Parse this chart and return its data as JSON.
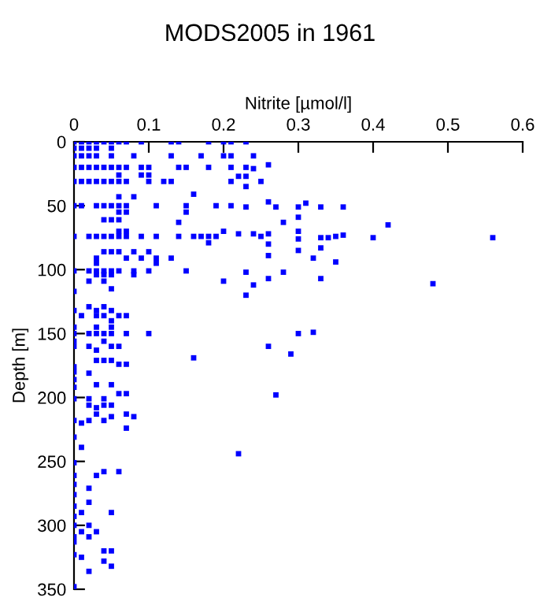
{
  "chart_data": {
    "type": "scatter",
    "title": "MODS2005 in 1961",
    "xlabel": "Nitrite [µmol/l]",
    "ylabel": "Depth [m]",
    "xlim": [
      0,
      0.6
    ],
    "xticks": [
      0,
      0.1,
      0.2,
      0.3,
      0.4,
      0.5,
      0.6
    ],
    "ylim": [
      350,
      0
    ],
    "yticks": [
      0,
      50,
      100,
      150,
      200,
      250,
      300,
      350
    ],
    "grid": false,
    "legend": false,
    "marker": "square",
    "series": [
      {
        "color": "#0000ff",
        "x": [
          0,
          0.01,
          0.02,
          0.03,
          0.04,
          0.05,
          0.06,
          0.07,
          0.09,
          0.13,
          0.14,
          0.18,
          0.2,
          0.21,
          0.23,
          0,
          0.01,
          0.02,
          0.03,
          0.05,
          0,
          0.01,
          0.02,
          0.03,
          0.05,
          0.08,
          0.13,
          0.17,
          0.2,
          0.21,
          0.24,
          0.26,
          0,
          0.01,
          0.02,
          0.03,
          0.04,
          0.05,
          0.06,
          0.07,
          0.09,
          0.1,
          0.14,
          0.15,
          0.18,
          0.21,
          0.23,
          0.24,
          0.06,
          0.09,
          0.1,
          0.22,
          0.23,
          0,
          0.01,
          0.02,
          0.03,
          0.04,
          0.05,
          0.06,
          0.07,
          0.1,
          0.12,
          0.13,
          0.21,
          0.25,
          0.23,
          0.16,
          0.06,
          0.08,
          0.26,
          0.31,
          0,
          0.01,
          0.03,
          0.04,
          0.05,
          0.06,
          0.07,
          0.11,
          0.15,
          0.19,
          0.21,
          0.23,
          0.27,
          0.3,
          0.33,
          0.36,
          0.06,
          0.07,
          0.15,
          0.3,
          0.04,
          0.05,
          0.06,
          0.14,
          0.28,
          0.42,
          0.06,
          0.07,
          0.2,
          0.3,
          0.22,
          0.24,
          0.26,
          0.36,
          0,
          0.02,
          0.03,
          0.04,
          0.05,
          0.06,
          0.07,
          0.09,
          0.11,
          0.14,
          0.16,
          0.17,
          0.18,
          0.19,
          0.25,
          0.35,
          0.33,
          0.34,
          0.4,
          0.56,
          0.3,
          0.18,
          0.26,
          0.33,
          0.3,
          0.04,
          0.05,
          0.06,
          0.08,
          0.1,
          0.26,
          0.03,
          0.07,
          0.09,
          0.11,
          0.13,
          0.32,
          0.35,
          0.03,
          0.11,
          0,
          0.02,
          0.03,
          0.04,
          0.05,
          0.06,
          0.08,
          0.1,
          0.15,
          0.23,
          0.28,
          0.03,
          0.04,
          0.05,
          0.08,
          0.26,
          0.33,
          0.02,
          0.04,
          0.2,
          0.48,
          0.24,
          0.05,
          0,
          0.23,
          0.02,
          0.04,
          0,
          0.03,
          0.05,
          0.01,
          0.03,
          0.04,
          0.06,
          0.07,
          0.05,
          0,
          0.03,
          0.05,
          0.32,
          0,
          0.02,
          0.03,
          0.04,
          0.05,
          0.07,
          0.1,
          0.3,
          0,
          0.04,
          0,
          0.02,
          0.05,
          0.06,
          0.26,
          0.03,
          0.29,
          0.16,
          0.03,
          0.04,
          0.05,
          0.06,
          0.07,
          0,
          0,
          0.02,
          0,
          0.03,
          0.05,
          0,
          0.06,
          0.07,
          0.27,
          0,
          0.02,
          0.04,
          0.02,
          0.04,
          0.05,
          0.03,
          0.03,
          0.07,
          0.05,
          0.08,
          0,
          0.02,
          0.04,
          0.01,
          0.07,
          0,
          0.01,
          0.22,
          0,
          0.04,
          0.06,
          0,
          0.03,
          0,
          0.02,
          0,
          0.02,
          0,
          0.01,
          0.05,
          0,
          0,
          0.02,
          0.01,
          0.03,
          0,
          0.02,
          0,
          0.04,
          0.05,
          0,
          0.01,
          0.04,
          0.05,
          0.02,
          0
        ],
        "values": [
          0,
          0,
          0,
          0,
          0,
          0,
          0,
          0,
          0,
          0,
          0,
          0,
          0,
          0,
          0,
          5,
          5,
          5,
          5,
          5,
          11,
          11,
          11,
          11,
          11,
          11,
          11,
          11,
          11,
          11,
          11,
          18,
          20,
          20,
          20,
          20,
          20,
          20,
          20,
          20,
          20,
          20,
          20,
          20,
          20,
          20,
          20,
          21,
          26,
          26,
          26,
          27,
          27,
          31,
          31,
          31,
          31,
          31,
          31,
          31,
          31,
          31,
          31,
          31,
          31,
          31,
          35,
          41,
          43,
          43,
          47,
          48,
          50,
          50,
          50,
          50,
          50,
          50,
          50,
          50,
          50,
          50,
          50,
          51,
          51,
          51,
          51,
          51,
          55,
          55,
          55,
          59,
          61,
          61,
          61,
          63,
          63,
          65,
          70,
          70,
          70,
          70,
          72,
          72,
          72,
          73,
          74,
          74,
          74,
          74,
          74,
          74,
          74,
          74,
          74,
          74,
          74,
          74,
          74,
          74,
          74,
          74,
          75,
          75,
          75,
          75,
          76,
          79,
          80,
          83,
          85,
          86,
          86,
          86,
          86,
          86,
          89,
          91,
          91,
          91,
          91,
          91,
          91,
          94,
          95,
          95,
          101,
          101,
          101,
          101,
          101,
          101,
          101,
          101,
          101,
          102,
          102,
          104,
          104,
          104,
          104,
          107,
          107,
          109,
          109,
          109,
          111,
          112,
          115,
          117,
          120,
          129,
          129,
          132,
          132,
          132,
          136,
          136,
          136,
          136,
          136,
          140,
          145,
          145,
          145,
          149,
          150,
          150,
          150,
          150,
          150,
          150,
          150,
          150,
          156,
          156,
          160,
          160,
          160,
          160,
          160,
          163,
          166,
          169,
          171,
          171,
          171,
          174,
          174,
          176,
          180,
          181,
          186,
          190,
          190,
          192,
          197,
          197,
          198,
          201,
          201,
          201,
          206,
          206,
          206,
          208,
          213,
          213,
          215,
          215,
          218,
          218,
          218,
          220,
          224,
          231,
          239,
          244,
          251,
          258,
          258,
          261,
          261,
          268,
          271,
          276,
          282,
          285,
          290,
          290,
          293,
          300,
          300,
          305,
          305,
          309,
          309,
          313,
          320,
          320,
          323,
          325,
          328,
          332,
          336,
          348
        ]
      }
    ]
  }
}
